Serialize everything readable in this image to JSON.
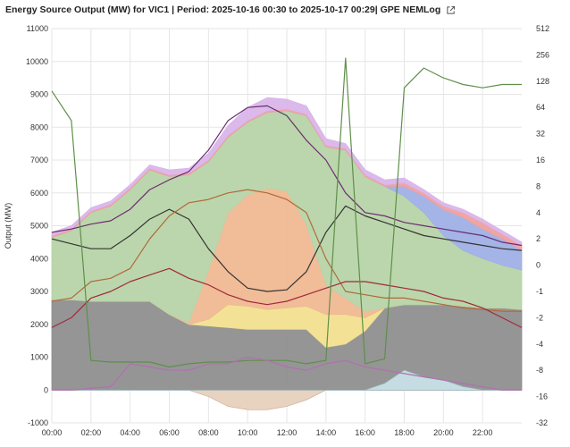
{
  "header": {
    "title": "Energy Source Output (MW) for VIC1 | Period: 2025-10-16 00:30 to 2025-10-17 00:29| GPE NEMLog",
    "link_icon": "external-link-icon"
  },
  "chart_data": {
    "type": "area",
    "ylabel": "Output (MW)",
    "ylim": [
      -1000,
      11000
    ],
    "yticks": [
      -1000,
      0,
      1000,
      2000,
      3000,
      4000,
      5000,
      6000,
      7000,
      8000,
      9000,
      10000,
      11000
    ],
    "y2ticks": [
      "512",
      "256",
      "128",
      "64",
      "32",
      "16",
      "8",
      "4",
      "2",
      "0",
      "-1",
      "-2",
      "-4",
      "-8",
      "-16",
      "-32"
    ],
    "xlim": [
      0,
      24
    ],
    "xticks": [
      "00:00",
      "02:00",
      "04:00",
      "06:00",
      "08:00",
      "10:00",
      "12:00",
      "14:00",
      "16:00",
      "18:00",
      "20:00",
      "22:00"
    ],
    "grid": true,
    "x": [
      0,
      1,
      2,
      3,
      4,
      5,
      6,
      7,
      8,
      9,
      10,
      11,
      12,
      13,
      14,
      15,
      16,
      17,
      18,
      19,
      20,
      21,
      22,
      23,
      24
    ],
    "stacked_series": [
      {
        "color": "#8f8f8f",
        "values": [
          2750,
          2750,
          2700,
          2700,
          2700,
          2700,
          2300,
          2000,
          1950,
          1900,
          1850,
          1850,
          1850,
          1850,
          1300,
          1400,
          1800,
          2500,
          2600,
          2600,
          2600,
          2550,
          2500,
          2500,
          2450
        ]
      },
      {
        "color": "#f2e08f",
        "values": [
          0,
          0,
          0,
          0,
          0,
          0,
          0,
          0,
          200,
          700,
          700,
          600,
          650,
          700,
          1000,
          900,
          400,
          0,
          0,
          0,
          0,
          0,
          0,
          0,
          0
        ]
      },
      {
        "color": "#f0b892",
        "values": [
          0,
          0,
          0,
          0,
          0,
          0,
          0,
          50,
          1500,
          2800,
          3400,
          3700,
          3550,
          2500,
          900,
          500,
          200,
          0,
          0,
          0,
          0,
          0,
          0,
          0,
          0
        ]
      },
      {
        "color": "#b7d4a8",
        "values": [
          1900,
          2100,
          2700,
          2900,
          3400,
          4000,
          4200,
          4500,
          3300,
          2300,
          2200,
          2300,
          2450,
          3300,
          4200,
          4500,
          4100,
          3700,
          3300,
          2800,
          2100,
          1700,
          1500,
          1300,
          1200
        ]
      },
      {
        "color": "#9fb0e6",
        "values": [
          0,
          0,
          0,
          0,
          0,
          0,
          0,
          0,
          0,
          0,
          0,
          0,
          0,
          0,
          0,
          0,
          0,
          0,
          300,
          500,
          800,
          1000,
          900,
          800,
          600
        ]
      },
      {
        "color": "#efa0a0",
        "values": [
          50,
          50,
          50,
          50,
          50,
          50,
          50,
          50,
          50,
          50,
          50,
          50,
          50,
          50,
          50,
          50,
          50,
          50,
          100,
          100,
          100,
          150,
          200,
          150,
          150
        ]
      },
      {
        "color": "#d9b5ea",
        "values": [
          100,
          100,
          100,
          100,
          100,
          100,
          150,
          150,
          200,
          300,
          400,
          400,
          300,
          250,
          200,
          150,
          150,
          150,
          150,
          100,
          100,
          100,
          100,
          100,
          100
        ]
      }
    ],
    "below_zero_area": {
      "color": "#e8d2c0",
      "values": [
        0,
        0,
        0,
        0,
        0,
        0,
        0,
        0,
        -200,
        -500,
        -600,
        -600,
        -500,
        -300,
        0,
        0,
        0,
        0,
        0,
        0,
        0,
        0,
        0,
        0,
        0
      ]
    },
    "bottom_area": {
      "color": "#c5dde2",
      "values": [
        0,
        0,
        0,
        0,
        0,
        0,
        0,
        0,
        0,
        0,
        0,
        0,
        0,
        0,
        0,
        0,
        0,
        200,
        600,
        400,
        300,
        100,
        0,
        0,
        0
      ]
    },
    "lines": [
      {
        "color": "#6b2d6e",
        "values": [
          4800,
          4900,
          5050,
          5150,
          5500,
          6100,
          6400,
          6650,
          7300,
          8200,
          8600,
          8650,
          8350,
          7600,
          7000,
          6000,
          5400,
          5300,
          5100,
          5000,
          4900,
          4800,
          4700,
          4500,
          4400
        ]
      },
      {
        "color": "#333333",
        "values": [
          4600,
          4450,
          4300,
          4300,
          4700,
          5200,
          5500,
          5200,
          4300,
          3600,
          3100,
          3000,
          3050,
          3600,
          4800,
          5600,
          5300,
          5100,
          4900,
          4700,
          4600,
          4500,
          4400,
          4300,
          4250
        ]
      },
      {
        "color": "#b06a3a",
        "values": [
          2700,
          2800,
          3300,
          3400,
          3700,
          4600,
          5300,
          5700,
          5800,
          6000,
          6100,
          6000,
          5800,
          5400,
          4000,
          3000,
          2900,
          2800,
          2800,
          2700,
          2600,
          2500,
          2450,
          2400,
          2400
        ]
      },
      {
        "color": "#a02a3a",
        "values": [
          1900,
          2200,
          2800,
          3000,
          3300,
          3500,
          3700,
          3400,
          3200,
          2900,
          2700,
          2600,
          2700,
          2900,
          3100,
          3300,
          3300,
          3200,
          3100,
          3000,
          2800,
          2700,
          2500,
          2200,
          1900
        ]
      },
      {
        "color": "#5f8f4a",
        "values": [
          9100,
          8200,
          900,
          850,
          850,
          850,
          700,
          800,
          850,
          850,
          900,
          900,
          900,
          800,
          900,
          10100,
          800,
          950,
          9200,
          9800,
          9500,
          9300,
          9200,
          9300,
          9300
        ]
      },
      {
        "color": "#b070b0",
        "values": [
          0,
          0,
          50,
          100,
          800,
          700,
          600,
          600,
          800,
          800,
          1000,
          900,
          700,
          600,
          800,
          900,
          700,
          600,
          500,
          400,
          300,
          200,
          100,
          0,
          0
        ]
      }
    ]
  }
}
